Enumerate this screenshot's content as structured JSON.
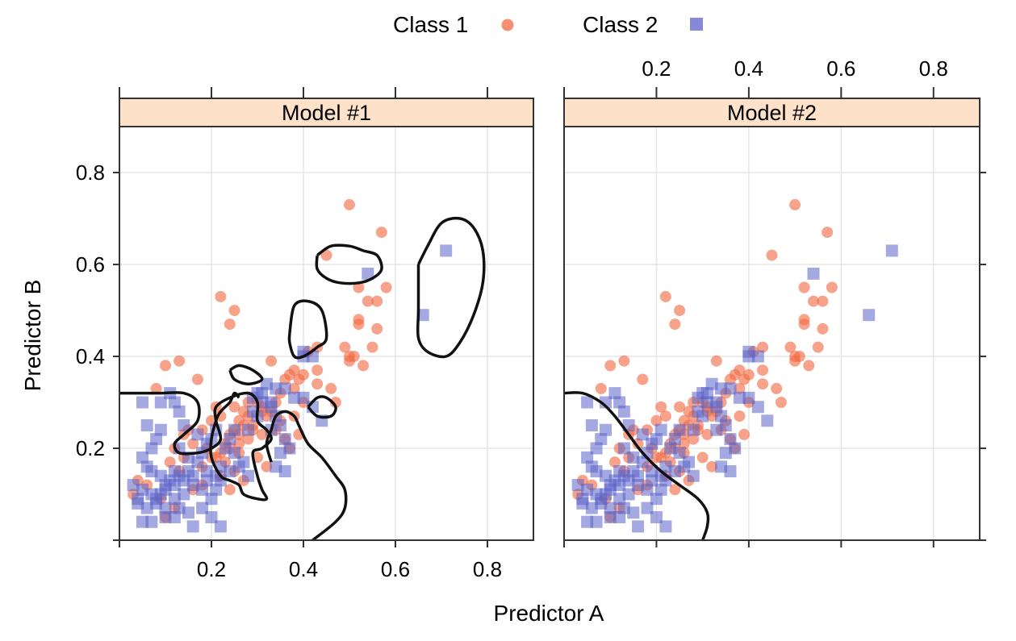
{
  "chart_data": {
    "type": "scatter",
    "xlabel": "Predictor A",
    "ylabel": "Predictor B",
    "xlim": [
      0.0,
      0.9
    ],
    "ylim": [
      0.0,
      0.9
    ],
    "x_ticks": [
      0.2,
      0.4,
      0.6,
      0.8
    ],
    "y_ticks": [
      0.2,
      0.4,
      0.6,
      0.8
    ],
    "grid": true,
    "legend_position": "top",
    "legend": [
      {
        "name": "Class 1",
        "marker": "circle",
        "color": "#f26b43"
      },
      {
        "name": "Class 2",
        "marker": "square",
        "color": "#5b63c9"
      }
    ],
    "panels": [
      {
        "title": "Model #1"
      },
      {
        "title": "Model #2"
      }
    ],
    "series": [
      {
        "name": "Class 1",
        "marker": "circle",
        "color": "#f26b43",
        "points": [
          [
            0.5,
            0.73
          ],
          [
            0.57,
            0.67
          ],
          [
            0.45,
            0.62
          ],
          [
            0.58,
            0.55
          ],
          [
            0.52,
            0.55
          ],
          [
            0.54,
            0.52
          ],
          [
            0.56,
            0.52
          ],
          [
            0.52,
            0.48
          ],
          [
            0.52,
            0.47
          ],
          [
            0.56,
            0.46
          ],
          [
            0.49,
            0.42
          ],
          [
            0.5,
            0.4
          ],
          [
            0.51,
            0.4
          ],
          [
            0.55,
            0.42
          ],
          [
            0.5,
            0.39
          ],
          [
            0.53,
            0.38
          ],
          [
            0.22,
            0.53
          ],
          [
            0.25,
            0.5
          ],
          [
            0.24,
            0.47
          ],
          [
            0.13,
            0.39
          ],
          [
            0.1,
            0.38
          ],
          [
            0.08,
            0.33
          ],
          [
            0.17,
            0.35
          ],
          [
            0.33,
            0.39
          ],
          [
            0.38,
            0.37
          ],
          [
            0.37,
            0.36
          ],
          [
            0.39,
            0.35
          ],
          [
            0.36,
            0.35
          ],
          [
            0.4,
            0.36
          ],
          [
            0.43,
            0.37
          ],
          [
            0.43,
            0.42
          ],
          [
            0.41,
            0.41
          ],
          [
            0.43,
            0.34
          ],
          [
            0.38,
            0.33
          ],
          [
            0.46,
            0.33
          ],
          [
            0.47,
            0.3
          ],
          [
            0.4,
            0.3
          ],
          [
            0.35,
            0.32
          ],
          [
            0.34,
            0.3
          ],
          [
            0.31,
            0.29
          ],
          [
            0.3,
            0.3
          ],
          [
            0.28,
            0.3
          ],
          [
            0.27,
            0.28
          ],
          [
            0.31,
            0.28
          ],
          [
            0.32,
            0.27
          ],
          [
            0.26,
            0.26
          ],
          [
            0.27,
            0.25
          ],
          [
            0.29,
            0.25
          ],
          [
            0.25,
            0.24
          ],
          [
            0.24,
            0.23
          ],
          [
            0.26,
            0.23
          ],
          [
            0.28,
            0.22
          ],
          [
            0.29,
            0.24
          ],
          [
            0.31,
            0.23
          ],
          [
            0.23,
            0.21
          ],
          [
            0.24,
            0.2
          ],
          [
            0.26,
            0.21
          ],
          [
            0.22,
            0.19
          ],
          [
            0.19,
            0.2
          ],
          [
            0.2,
            0.18
          ],
          [
            0.21,
            0.18
          ],
          [
            0.18,
            0.16
          ],
          [
            0.23,
            0.17
          ],
          [
            0.26,
            0.19
          ],
          [
            0.3,
            0.18
          ],
          [
            0.32,
            0.16
          ],
          [
            0.25,
            0.15
          ],
          [
            0.27,
            0.13
          ],
          [
            0.24,
            0.11
          ],
          [
            0.22,
            0.14
          ],
          [
            0.18,
            0.12
          ],
          [
            0.16,
            0.11
          ],
          [
            0.13,
            0.15
          ],
          [
            0.14,
            0.23
          ],
          [
            0.16,
            0.21
          ],
          [
            0.14,
            0.18
          ],
          [
            0.12,
            0.2
          ],
          [
            0.11,
            0.17
          ],
          [
            0.34,
            0.24
          ],
          [
            0.36,
            0.22
          ],
          [
            0.37,
            0.2
          ],
          [
            0.39,
            0.23
          ],
          [
            0.35,
            0.26
          ],
          [
            0.33,
            0.28
          ],
          [
            0.38,
            0.27
          ],
          [
            0.28,
            0.27
          ],
          [
            0.25,
            0.29
          ],
          [
            0.22,
            0.27
          ],
          [
            0.2,
            0.26
          ],
          [
            0.21,
            0.29
          ],
          [
            0.18,
            0.24
          ],
          [
            0.15,
            0.24
          ],
          [
            0.04,
            0.13
          ],
          [
            0.06,
            0.12
          ],
          [
            0.03,
            0.1
          ],
          [
            0.09,
            0.09
          ],
          [
            0.12,
            0.07
          ],
          [
            0.1,
            0.05
          ]
        ]
      },
      {
        "name": "Class 2",
        "marker": "square",
        "color": "#5b63c9",
        "points": [
          [
            0.71,
            0.63
          ],
          [
            0.54,
            0.58
          ],
          [
            0.66,
            0.49
          ],
          [
            0.4,
            0.41
          ],
          [
            0.4,
            0.4
          ],
          [
            0.42,
            0.4
          ],
          [
            0.4,
            0.31
          ],
          [
            0.42,
            0.29
          ],
          [
            0.44,
            0.26
          ],
          [
            0.34,
            0.33
          ],
          [
            0.31,
            0.32
          ],
          [
            0.33,
            0.3
          ],
          [
            0.31,
            0.3
          ],
          [
            0.29,
            0.31
          ],
          [
            0.33,
            0.29
          ],
          [
            0.29,
            0.28
          ],
          [
            0.3,
            0.27
          ],
          [
            0.34,
            0.27
          ],
          [
            0.35,
            0.25
          ],
          [
            0.33,
            0.24
          ],
          [
            0.36,
            0.22
          ],
          [
            0.37,
            0.2
          ],
          [
            0.35,
            0.19
          ],
          [
            0.34,
            0.16
          ],
          [
            0.36,
            0.15
          ],
          [
            0.28,
            0.24
          ],
          [
            0.25,
            0.24
          ],
          [
            0.24,
            0.22
          ],
          [
            0.23,
            0.2
          ],
          [
            0.25,
            0.19
          ],
          [
            0.27,
            0.17
          ],
          [
            0.26,
            0.16
          ],
          [
            0.28,
            0.14
          ],
          [
            0.24,
            0.15
          ],
          [
            0.22,
            0.16
          ],
          [
            0.21,
            0.14
          ],
          [
            0.19,
            0.15
          ],
          [
            0.19,
            0.13
          ],
          [
            0.18,
            0.11
          ],
          [
            0.16,
            0.12
          ],
          [
            0.14,
            0.13
          ],
          [
            0.12,
            0.12
          ],
          [
            0.1,
            0.12
          ],
          [
            0.09,
            0.14
          ],
          [
            0.07,
            0.15
          ],
          [
            0.06,
            0.16
          ],
          [
            0.05,
            0.18
          ],
          [
            0.07,
            0.2
          ],
          [
            0.08,
            0.22
          ],
          [
            0.09,
            0.24
          ],
          [
            0.06,
            0.25
          ],
          [
            0.05,
            0.3
          ],
          [
            0.09,
            0.3
          ],
          [
            0.12,
            0.3
          ],
          [
            0.11,
            0.32
          ],
          [
            0.13,
            0.28
          ],
          [
            0.14,
            0.25
          ],
          [
            0.13,
            0.2
          ],
          [
            0.15,
            0.18
          ],
          [
            0.17,
            0.17
          ],
          [
            0.18,
            0.19
          ],
          [
            0.19,
            0.21
          ],
          [
            0.17,
            0.23
          ],
          [
            0.21,
            0.24
          ],
          [
            0.2,
            0.22
          ],
          [
            0.15,
            0.15
          ],
          [
            0.16,
            0.14
          ],
          [
            0.13,
            0.14
          ],
          [
            0.12,
            0.15
          ],
          [
            0.11,
            0.13
          ],
          [
            0.1,
            0.11
          ],
          [
            0.09,
            0.1
          ],
          [
            0.08,
            0.09
          ],
          [
            0.07,
            0.1
          ],
          [
            0.05,
            0.11
          ],
          [
            0.04,
            0.09
          ],
          [
            0.03,
            0.12
          ],
          [
            0.04,
            0.08
          ],
          [
            0.06,
            0.07
          ],
          [
            0.08,
            0.08
          ],
          [
            0.1,
            0.07
          ],
          [
            0.12,
            0.09
          ],
          [
            0.14,
            0.1
          ],
          [
            0.13,
            0.07
          ],
          [
            0.15,
            0.06
          ],
          [
            0.18,
            0.07
          ],
          [
            0.2,
            0.09
          ],
          [
            0.21,
            0.11
          ],
          [
            0.22,
            0.13
          ],
          [
            0.1,
            0.05
          ],
          [
            0.12,
            0.05
          ],
          [
            0.2,
            0.05
          ],
          [
            0.07,
            0.04
          ],
          [
            0.05,
            0.04
          ],
          [
            0.16,
            0.03
          ],
          [
            0.22,
            0.03
          ],
          [
            0.3,
            0.32
          ],
          [
            0.32,
            0.34
          ],
          [
            0.36,
            0.33
          ],
          [
            0.38,
            0.31
          ]
        ]
      }
    ],
    "boundaries": [
      [
        [
          [
            0.0,
            0.32
          ],
          [
            0.04,
            0.32
          ],
          [
            0.09,
            0.32
          ],
          [
            0.14,
            0.32
          ],
          [
            0.17,
            0.3
          ],
          [
            0.17,
            0.26
          ],
          [
            0.14,
            0.23
          ],
          [
            0.12,
            0.21
          ],
          [
            0.13,
            0.19
          ],
          [
            0.17,
            0.19
          ],
          [
            0.2,
            0.2
          ],
          [
            0.22,
            0.22
          ],
          [
            0.21,
            0.26
          ],
          [
            0.21,
            0.29
          ],
          [
            0.24,
            0.31
          ],
          [
            0.28,
            0.32
          ],
          [
            0.3,
            0.3
          ],
          [
            0.3,
            0.26
          ],
          [
            0.32,
            0.24
          ],
          [
            0.33,
            0.22
          ],
          [
            0.31,
            0.2
          ],
          [
            0.29,
            0.19
          ],
          [
            0.3,
            0.14
          ],
          [
            0.31,
            0.11
          ],
          [
            0.32,
            0.09
          ],
          [
            0.3,
            0.09
          ],
          [
            0.27,
            0.1
          ],
          [
            0.26,
            0.12
          ],
          [
            0.24,
            0.13
          ],
          [
            0.22,
            0.14
          ],
          [
            0.2,
            0.18
          ],
          [
            0.2,
            0.22
          ],
          [
            0.21,
            0.26
          ],
          [
            0.22,
            0.28
          ],
          [
            0.24,
            0.3
          ],
          [
            0.25,
            0.32
          ],
          [
            0.26,
            0.31
          ]
        ],
        [
          [
            0.24,
            0.37
          ],
          [
            0.26,
            0.38
          ],
          [
            0.29,
            0.37
          ],
          [
            0.31,
            0.35
          ],
          [
            0.28,
            0.34
          ],
          [
            0.25,
            0.35
          ],
          [
            0.24,
            0.37
          ]
        ],
        [
          [
            0.37,
            0.45
          ],
          [
            0.38,
            0.51
          ],
          [
            0.41,
            0.52
          ],
          [
            0.44,
            0.5
          ],
          [
            0.45,
            0.44
          ],
          [
            0.43,
            0.42
          ],
          [
            0.4,
            0.4
          ],
          [
            0.38,
            0.4
          ],
          [
            0.37,
            0.43
          ],
          [
            0.37,
            0.45
          ]
        ],
        [
          [
            0.43,
            0.62
          ],
          [
            0.46,
            0.64
          ],
          [
            0.5,
            0.64
          ],
          [
            0.53,
            0.63
          ],
          [
            0.56,
            0.62
          ],
          [
            0.57,
            0.59
          ],
          [
            0.55,
            0.57
          ],
          [
            0.52,
            0.56
          ],
          [
            0.48,
            0.56
          ],
          [
            0.45,
            0.57
          ],
          [
            0.43,
            0.59
          ],
          [
            0.43,
            0.62
          ]
        ],
        [
          [
            0.65,
            0.6
          ],
          [
            0.67,
            0.64
          ],
          [
            0.7,
            0.69
          ],
          [
            0.74,
            0.7
          ],
          [
            0.77,
            0.68
          ],
          [
            0.79,
            0.63
          ],
          [
            0.79,
            0.56
          ],
          [
            0.77,
            0.49
          ],
          [
            0.74,
            0.43
          ],
          [
            0.71,
            0.4
          ],
          [
            0.67,
            0.41
          ],
          [
            0.65,
            0.44
          ],
          [
            0.65,
            0.5
          ],
          [
            0.65,
            0.56
          ],
          [
            0.65,
            0.6
          ]
        ],
        [
          [
            0.41,
            0.29
          ],
          [
            0.43,
            0.31
          ],
          [
            0.45,
            0.31
          ],
          [
            0.47,
            0.29
          ],
          [
            0.46,
            0.27
          ],
          [
            0.43,
            0.27
          ],
          [
            0.41,
            0.29
          ]
        ],
        [
          [
            0.42,
            0.0
          ],
          [
            0.47,
            0.04
          ],
          [
            0.49,
            0.07
          ],
          [
            0.49,
            0.11
          ],
          [
            0.47,
            0.14
          ],
          [
            0.44,
            0.18
          ],
          [
            0.41,
            0.21
          ],
          [
            0.39,
            0.25
          ],
          [
            0.38,
            0.27
          ],
          [
            0.36,
            0.28
          ],
          [
            0.34,
            0.27
          ],
          [
            0.33,
            0.24
          ],
          [
            0.32,
            0.21
          ],
          [
            0.33,
            0.17
          ]
        ]
      ],
      [
        [
          [
            0.0,
            0.32
          ],
          [
            0.04,
            0.32
          ],
          [
            0.08,
            0.3
          ],
          [
            0.11,
            0.27
          ],
          [
            0.14,
            0.23
          ],
          [
            0.17,
            0.19
          ],
          [
            0.21,
            0.15
          ],
          [
            0.25,
            0.12
          ],
          [
            0.29,
            0.09
          ],
          [
            0.31,
            0.06
          ],
          [
            0.31,
            0.03
          ],
          [
            0.3,
            0.0
          ]
        ]
      ]
    ]
  }
}
